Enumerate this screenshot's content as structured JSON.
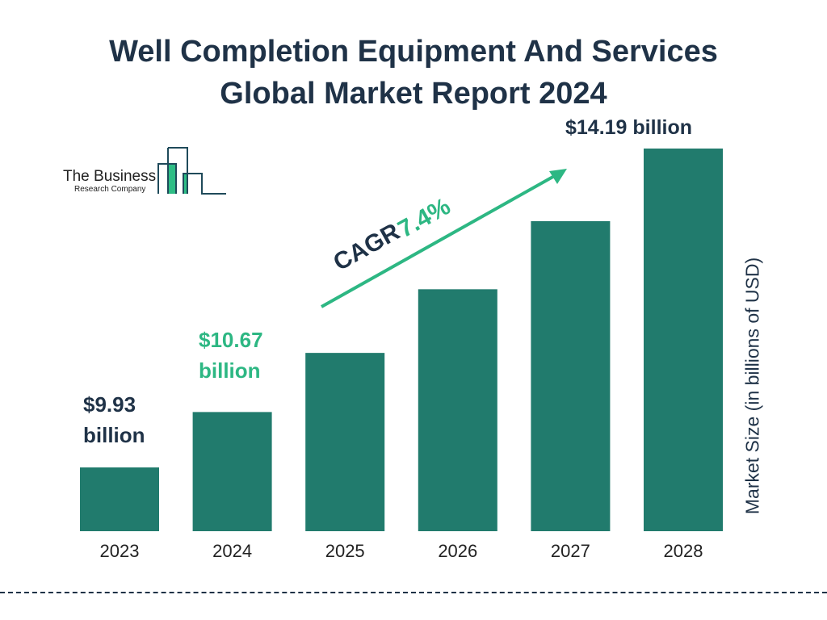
{
  "chart_data": {
    "type": "bar",
    "title": "Well Completion Equipment And Services Global Market Report 2024",
    "title_lines": [
      "Well Completion Equipment And Services",
      "Global Market Report 2024"
    ],
    "categories": [
      "2023",
      "2024",
      "2025",
      "2026",
      "2027",
      "2028"
    ],
    "values": [
      9.93,
      10.67,
      11.46,
      12.31,
      13.22,
      14.19
    ],
    "data_labels": {
      "2023": "$9.93 billion",
      "2024": "$10.67 billion",
      "2028": "$14.19 billion"
    },
    "ylabel": "Market Size (in billions of USD)",
    "xlabel": "",
    "annotation": {
      "prefix": "CAGR",
      "value": "7.4%"
    },
    "grid": false,
    "colors": {
      "bar": "#217b6d",
      "text": "#1f3247",
      "accent": "#2db783"
    }
  },
  "logo": {
    "line1": "The Business",
    "line2": "Research Company"
  }
}
